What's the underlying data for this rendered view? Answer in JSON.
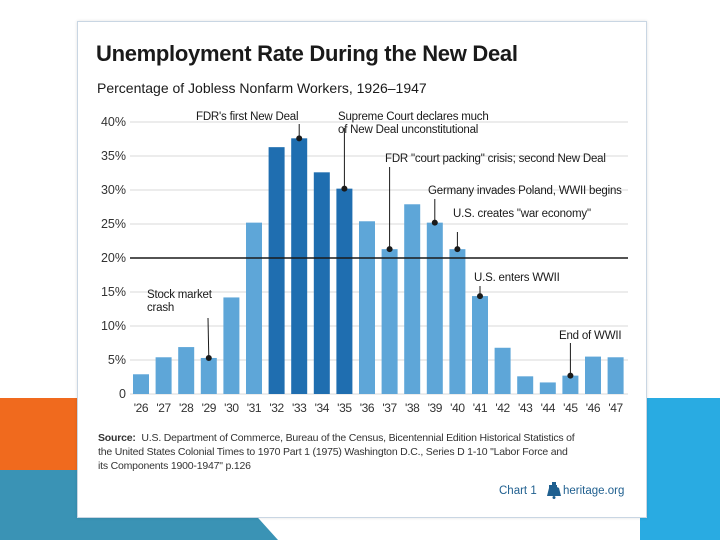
{
  "colors": {
    "bar_dark": "#1f6eb0",
    "bar_light": "#5ea6d8",
    "grid": "#d9d9d9",
    "ref_line": "#1a1a1a",
    "slide_orange": "#f06a1e",
    "slide_blue": "#29abe2",
    "slide_teal": "#3a93b5"
  },
  "chart_data": {
    "type": "bar",
    "title": "Unemployment Rate During the New Deal",
    "subtitle": "Percentage of Jobless Nonfarm Workers, 1926–1947",
    "categories": [
      "'26",
      "'27",
      "'28",
      "'29",
      "'30",
      "'31",
      "'32",
      "'33",
      "'34",
      "'35",
      "'36",
      "'37",
      "'38",
      "'39",
      "'40",
      "'41",
      "'42",
      "'43",
      "'44",
      "'45",
      "'46",
      "'47"
    ],
    "values": [
      2.9,
      5.4,
      6.9,
      5.3,
      14.2,
      25.2,
      36.3,
      37.6,
      32.6,
      30.2,
      25.4,
      21.3,
      27.9,
      25.2,
      21.3,
      14.4,
      6.8,
      2.6,
      1.7,
      2.7,
      5.5,
      5.4
    ],
    "highlight": [
      false,
      false,
      false,
      false,
      false,
      false,
      true,
      true,
      true,
      true,
      false,
      false,
      false,
      false,
      false,
      false,
      false,
      false,
      false,
      false,
      false,
      false
    ],
    "ylim": [
      0,
      40
    ],
    "yticks": [
      0,
      5,
      10,
      15,
      20,
      25,
      30,
      35,
      40
    ],
    "ytick_labels": [
      "0",
      "5%",
      "10%",
      "15%",
      "20%",
      "25%",
      "30%",
      "35%",
      "40%"
    ],
    "reference_line": 20,
    "xlabel": "",
    "ylabel": "",
    "grid": true,
    "annotations": [
      {
        "lines": [
          "FDR's first New Deal"
        ],
        "marker_index": 7
      },
      {
        "lines": [
          "Supreme Court declares much",
          "of New Deal unconstitutional"
        ],
        "marker_index": 9
      },
      {
        "lines": [
          "FDR \"court packing\" crisis; second New Deal"
        ],
        "marker_index": 11
      },
      {
        "lines": [
          "Germany invades Poland, WWII begins"
        ],
        "marker_index": 13
      },
      {
        "lines": [
          "U.S. creates \"war economy\""
        ],
        "marker_index": 14
      },
      {
        "lines": [
          "U.S. enters WWII"
        ],
        "marker_index": 15
      },
      {
        "lines": [
          "Stock market",
          "crash"
        ],
        "marker_index": 3
      },
      {
        "lines": [
          "End of WWII"
        ],
        "marker_index": 19
      }
    ]
  },
  "source": {
    "label": "Source:",
    "lines": [
      "U.S. Department of Commerce, Bureau of the Census, Bicentennial Edition Historical Statistics of",
      "the United States Colonial Times to 1970 Part 1 (1975) Washington D.C., Series D 1-10 \"Labor Force and",
      "its Components 1900-1947\" p.126"
    ]
  },
  "footer": {
    "chart_label": "Chart 1",
    "brand": "heritage.org"
  }
}
